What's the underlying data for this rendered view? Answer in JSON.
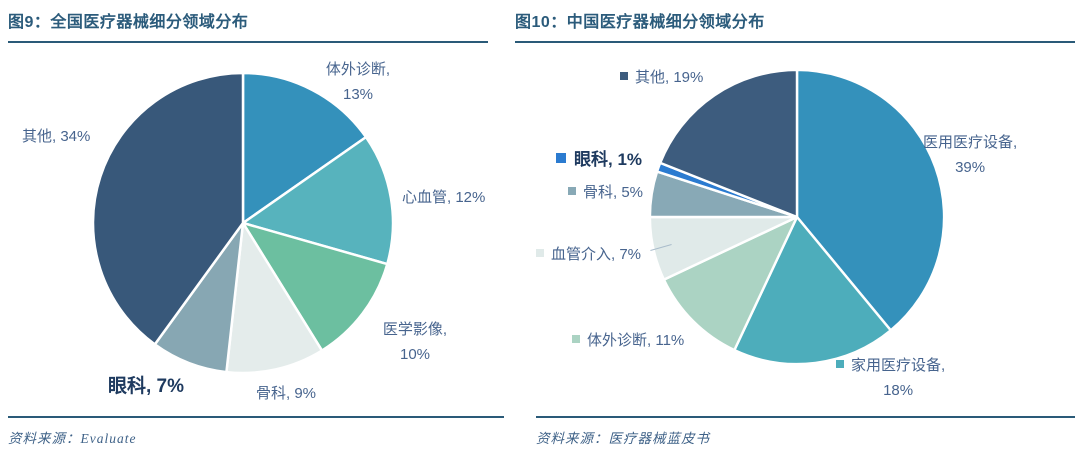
{
  "page": {
    "background": "#ffffff"
  },
  "styles": {
    "accent_rule": "#2a5a78",
    "title_color": "#2b5b7b",
    "label_color": "#47648e",
    "emphasis_color": "#1e3a5f",
    "source_color": "#3f6288"
  },
  "figures": [
    {
      "title": "图9：全国医疗器械细分领域分布",
      "source": "资料来源：Evaluate"
    },
    {
      "title": "图10：中国医疗器械细分领域分布",
      "source": "资料来源：医疗器械蓝皮书"
    }
  ],
  "chart_data": [
    {
      "type": "pie",
      "title": "图9：全国医疗器械细分领域分布",
      "start_angle_deg": 0,
      "direction": "clockwise",
      "legend_markers": false,
      "labels": [
        "体外诊断",
        "心血管",
        "医学影像",
        "骨科",
        "眼科",
        "其他"
      ],
      "values": [
        13,
        12,
        10,
        9,
        7,
        34
      ],
      "unit": "%",
      "colors": [
        "#3491bb",
        "#57b3bd",
        "#6cbfa0",
        "#e4eceb",
        "#87a7b3",
        "#38587a"
      ],
      "display_labels": [
        {
          "slice": 0,
          "line1": "体外诊断,",
          "line2": "13%",
          "emphasis": false
        },
        {
          "slice": 1,
          "line1": "心血管, 12%",
          "line2": "",
          "emphasis": false
        },
        {
          "slice": 2,
          "line1": "医学影像,",
          "line2": "10%",
          "emphasis": false
        },
        {
          "slice": 3,
          "line1": "骨科, 9%",
          "line2": "",
          "emphasis": false
        },
        {
          "slice": 4,
          "line1": "眼科, 7%",
          "line2": "",
          "emphasis": true
        },
        {
          "slice": 5,
          "line1": "其他, 34%",
          "line2": "",
          "emphasis": false
        }
      ],
      "source": "资料来源：Evaluate"
    },
    {
      "type": "pie",
      "title": "图10：中国医疗器械细分领域分布",
      "start_angle_deg": 0,
      "direction": "clockwise",
      "legend_markers": true,
      "labels": [
        "医用医疗设备",
        "家用医疗设备",
        "体外诊断",
        "血管介入",
        "骨科",
        "眼科",
        "其他"
      ],
      "values": [
        39,
        18,
        11,
        7,
        5,
        1,
        19
      ],
      "unit": "%",
      "colors": [
        "#3491bb",
        "#4dadbb",
        "#abd3c3",
        "#e0eae9",
        "#88a9b6",
        "#2b7bd0",
        "#3d5c7e"
      ],
      "display_labels": [
        {
          "slice": 6,
          "line1": "其他, 19%",
          "line2": "",
          "emphasis": false
        },
        {
          "slice": 0,
          "line1": "医用医疗设备,",
          "line2": "39%",
          "emphasis": false
        },
        {
          "slice": 5,
          "line1": "眼科, 1%",
          "line2": "",
          "emphasis": true
        },
        {
          "slice": 4,
          "line1": "骨科, 5%",
          "line2": "",
          "emphasis": false
        },
        {
          "slice": 3,
          "line1": "血管介入, 7%",
          "line2": "",
          "emphasis": false
        },
        {
          "slice": 2,
          "line1": "体外诊断, 11%",
          "line2": "",
          "emphasis": false
        },
        {
          "slice": 1,
          "line1": "家用医疗设备,",
          "line2": "18%",
          "emphasis": false
        }
      ],
      "source": "资料来源：医疗器械蓝皮书"
    }
  ]
}
